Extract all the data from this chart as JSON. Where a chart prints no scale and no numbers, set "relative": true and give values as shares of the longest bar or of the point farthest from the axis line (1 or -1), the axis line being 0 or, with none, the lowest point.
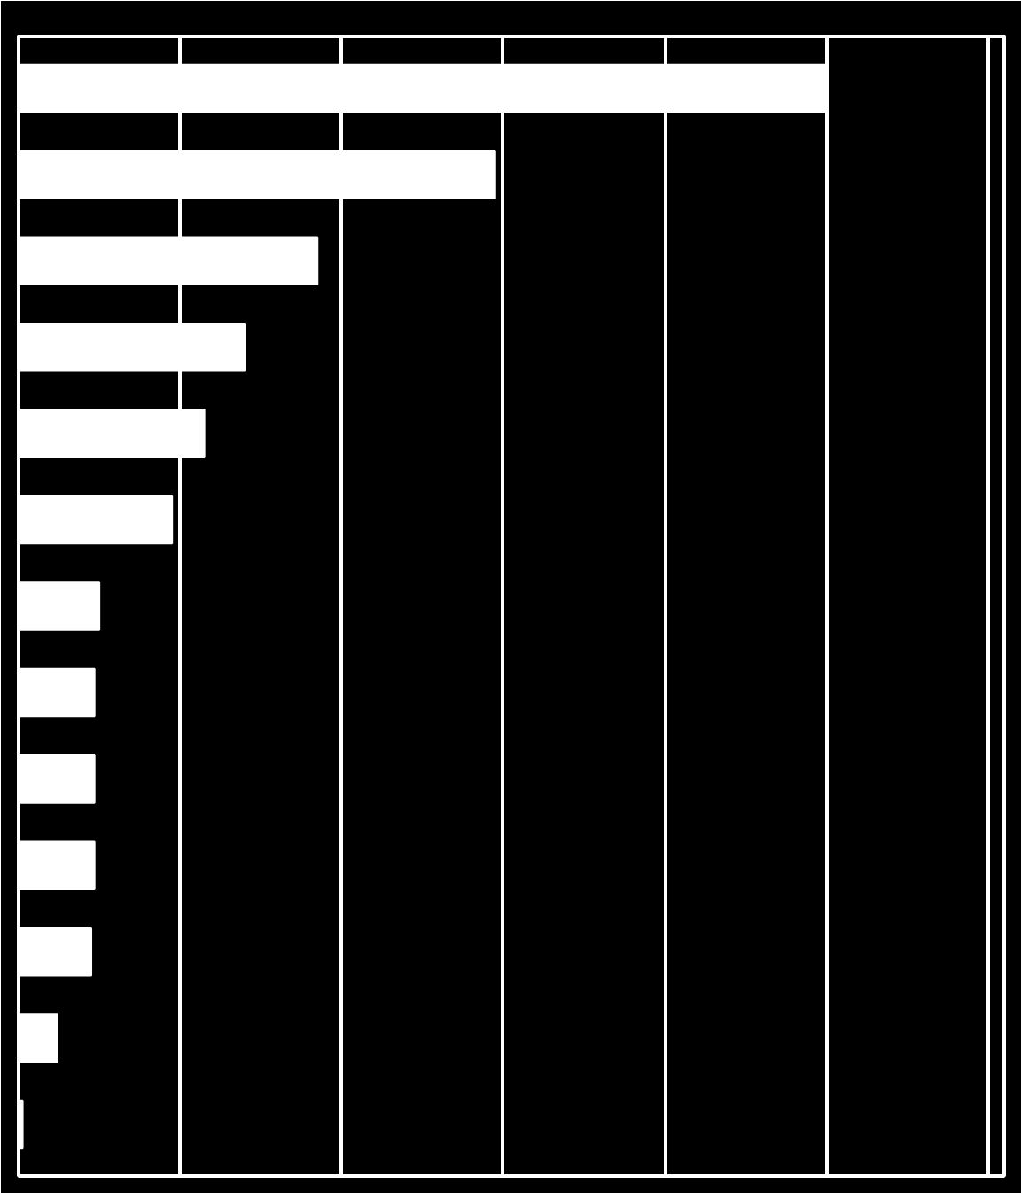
{
  "chart_data": {
    "type": "bar",
    "orientation": "horizontal",
    "relative": true,
    "categories": [
      null,
      null,
      null,
      null,
      null,
      null,
      null,
      null,
      null,
      null,
      null,
      null,
      null
    ],
    "values": [
      1,
      0.59,
      0.37,
      0.28,
      0.23,
      0.19,
      0.1,
      0.094,
      0.094,
      0.094,
      0.09,
      0.048,
      0.005
    ],
    "color": "#ffffff",
    "grid": "x"
  }
}
